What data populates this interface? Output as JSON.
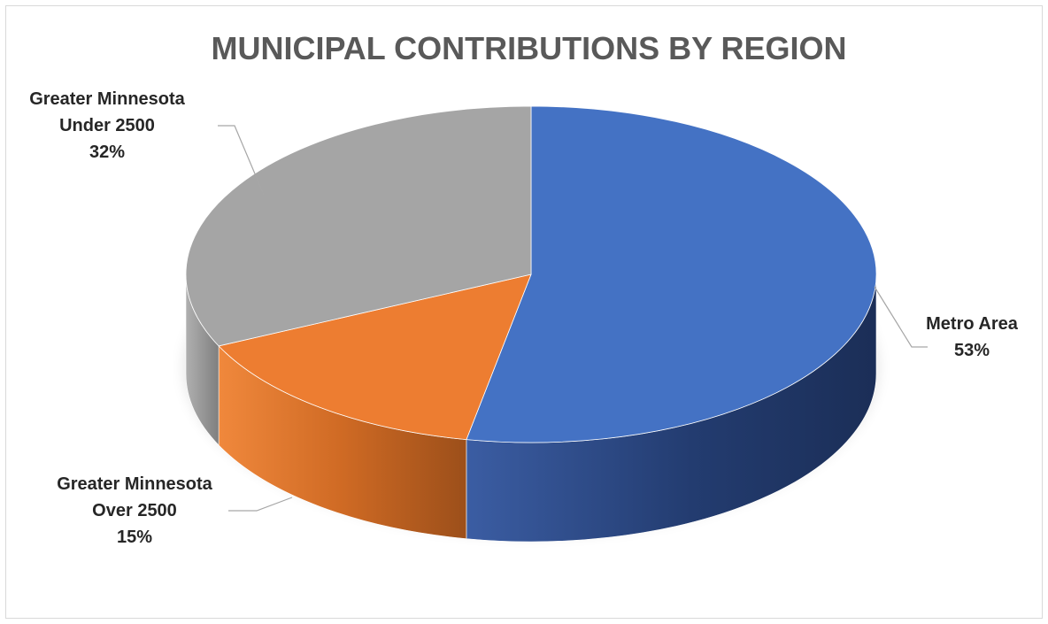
{
  "chart_data": {
    "type": "pie",
    "style": "3d",
    "title": "MUNICIPAL CONTRIBUTIONS BY REGION",
    "slices": [
      {
        "label_lines": [
          "Metro Area"
        ],
        "value": 53,
        "display": "53%",
        "color": "#4472c4"
      },
      {
        "label_lines": [
          "Greater Minnesota",
          "Over 2500"
        ],
        "value": 15,
        "display": "15%",
        "color": "#ed7d31"
      },
      {
        "label_lines": [
          "Greater Minnesota",
          "Under 2500"
        ],
        "value": 32,
        "display": "32%",
        "color": "#a5a5a5"
      }
    ],
    "legend": "none",
    "data_labels": "outside with leader lines"
  }
}
